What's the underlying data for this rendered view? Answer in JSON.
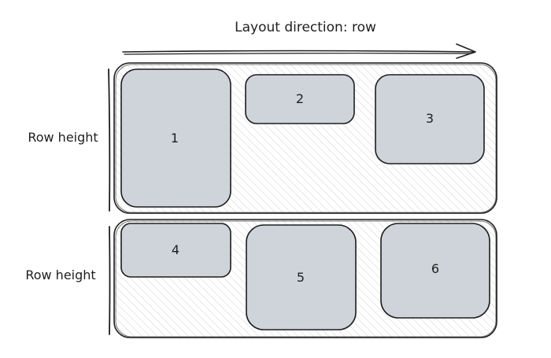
{
  "diagram": {
    "title": "Layout direction: row",
    "row_labels": [
      "Row height",
      "Row height"
    ],
    "items": [
      "1",
      "2",
      "3",
      "4",
      "5",
      "6"
    ]
  },
  "colors": {
    "stroke": "#1e1e1e",
    "item_fill": "#ced4da",
    "hatch": "#d0d0d0",
    "background": "#ffffff"
  }
}
